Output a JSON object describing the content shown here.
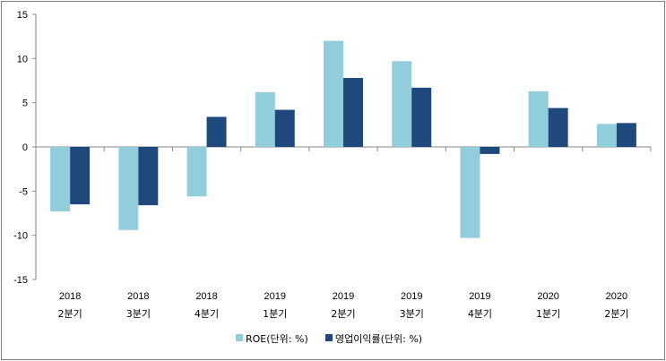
{
  "chart_data": {
    "type": "bar",
    "title": "",
    "xlabel": "",
    "ylabel": "",
    "ylim": [
      -15,
      15
    ],
    "yticks": [
      15,
      10,
      5,
      0,
      -5,
      -10,
      -15
    ],
    "categories": [
      {
        "year": "2018",
        "quarter": "2분기"
      },
      {
        "year": "2018",
        "quarter": "3분기"
      },
      {
        "year": "2018",
        "quarter": "4분기"
      },
      {
        "year": "2019",
        "quarter": "1분기"
      },
      {
        "year": "2019",
        "quarter": "2분기"
      },
      {
        "year": "2019",
        "quarter": "3분기"
      },
      {
        "year": "2019",
        "quarter": "4분기"
      },
      {
        "year": "2020",
        "quarter": "1분기"
      },
      {
        "year": "2020",
        "quarter": "2분기"
      }
    ],
    "series": [
      {
        "name": "ROE(단위: %)",
        "color": "#92cddc",
        "values": [
          -7.3,
          -9.4,
          -5.6,
          6.2,
          12.0,
          9.7,
          -10.3,
          6.3,
          2.6
        ]
      },
      {
        "name": "영업이익률(단위: %)",
        "color": "#1f497d",
        "values": [
          -6.5,
          -6.6,
          3.4,
          4.2,
          7.8,
          6.7,
          -0.8,
          4.4,
          2.7
        ]
      }
    ],
    "legend_position": "bottom"
  }
}
